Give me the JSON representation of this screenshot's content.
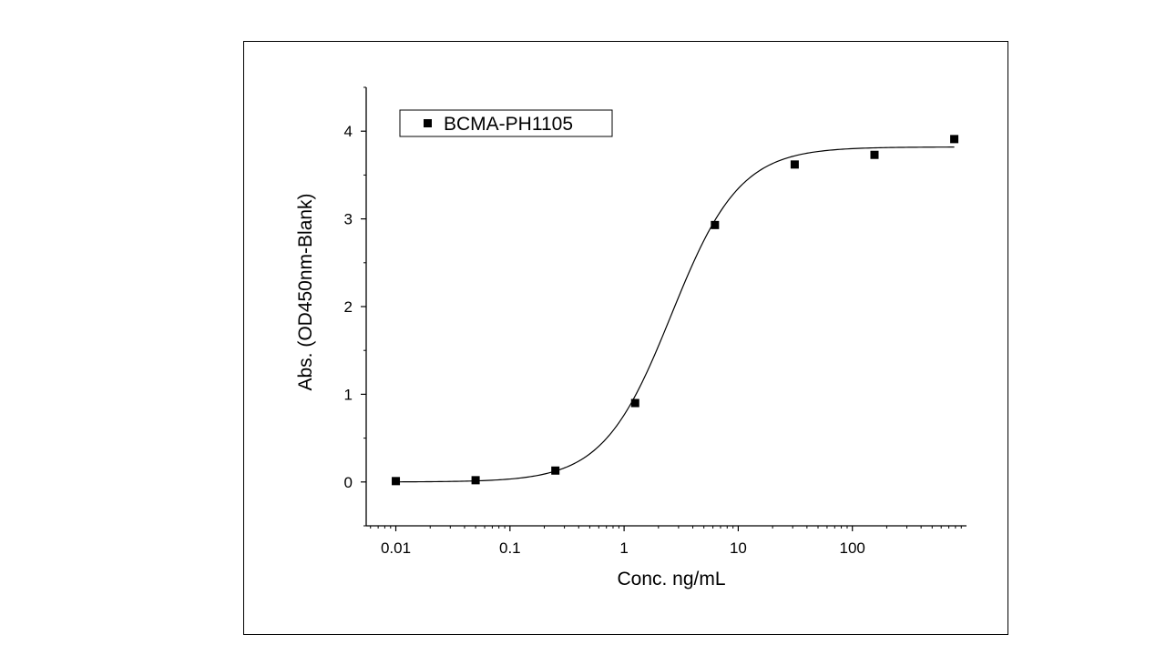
{
  "chart_data": {
    "type": "scatter",
    "x_scale": "log",
    "xlabel": "Conc. ng/mL",
    "ylabel": "Abs. (OD450nm-Blank)",
    "xlim": [
      0.0055,
      1000
    ],
    "ylim": [
      -0.5,
      4.5
    ],
    "x_ticks": [
      0.01,
      0.1,
      1,
      10,
      100
    ],
    "x_tick_labels": [
      "0.01",
      "0.1",
      "1",
      "10",
      "100"
    ],
    "y_ticks": [
      0,
      1,
      2,
      3,
      4
    ],
    "y_tick_labels": [
      "0",
      "1",
      "2",
      "3",
      "4"
    ],
    "legend_position": "top-left",
    "series": [
      {
        "name": "BCMA-PH1105",
        "marker": "square",
        "color": "#000000",
        "x": [
          0.01,
          0.05,
          0.25,
          1.25,
          6.25,
          31.25,
          156.25,
          781.25
        ],
        "y": [
          0.01,
          0.02,
          0.13,
          0.9,
          2.93,
          3.62,
          3.73,
          3.91
        ]
      }
    ],
    "fit_curve": {
      "model": "4PL",
      "bottom": 0.0,
      "top": 3.82,
      "ec50": 2.6,
      "hill": 1.45,
      "color": "#000000"
    }
  }
}
